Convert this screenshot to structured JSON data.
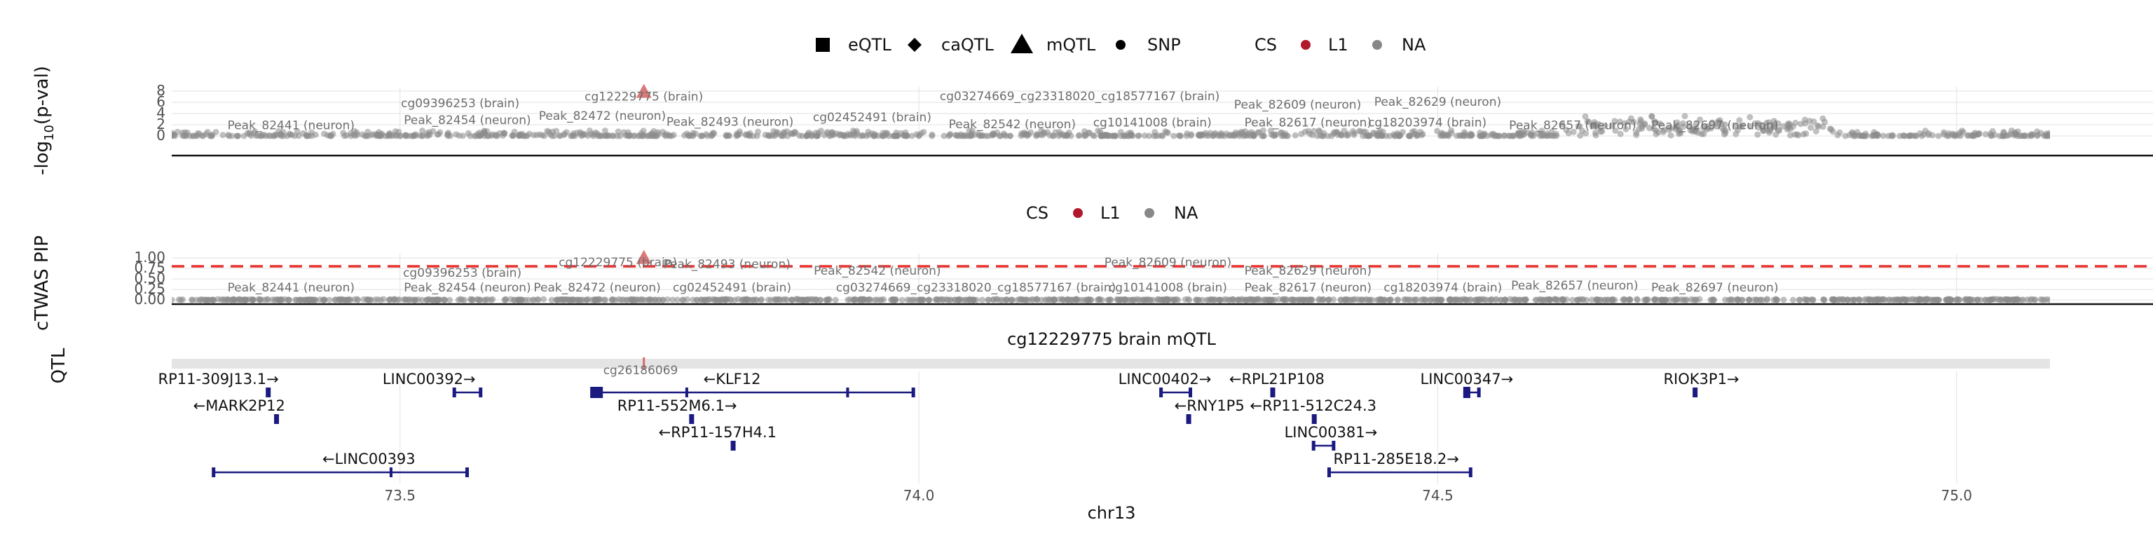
{
  "legend_top": {
    "shapes": [
      {
        "symbol": "square",
        "label": "eQTL"
      },
      {
        "symbol": "diamond",
        "label": "caQTL"
      },
      {
        "symbol": "triangle",
        "label": "mQTL"
      },
      {
        "symbol": "circle",
        "label": "SNP"
      }
    ],
    "cs_title": "CS",
    "cs_entries": [
      {
        "label": "L1",
        "color": "#b2182b"
      },
      {
        "label": "NA",
        "color": "#888888"
      }
    ]
  },
  "legend_mid": {
    "cs_title": "CS",
    "cs_entries": [
      {
        "label": "L1",
        "color": "#b2182b"
      },
      {
        "label": "NA",
        "color": "#888888"
      }
    ]
  },
  "chart_data": {
    "type": "scatter",
    "xlabel": "chr13",
    "xlim": [
      73.28,
      75.09
    ],
    "x_ticks": [
      73.5,
      74.0,
      74.5,
      75.0
    ],
    "x_tick_labels": [
      "73.5",
      "74.0",
      "74.5",
      "75.0"
    ],
    "panels": [
      {
        "id": "pval",
        "ylabel_prefix": "-log",
        "ylabel_sub": "10",
        "ylabel_suffix": "(p-val)",
        "ylim": [
          0,
          8
        ],
        "y_ticks": [
          0,
          2,
          4,
          6,
          8
        ],
        "y_tick_labels": [
          "0",
          "2",
          "4",
          "6",
          "8"
        ],
        "lead": {
          "x": 73.735,
          "y": 7.8,
          "shape": "triangle",
          "cs": "L1"
        },
        "background_level": 0.6,
        "labels": [
          {
            "text": "Peak_82441 (neuron)",
            "x": 73.395,
            "y": 1.2
          },
          {
            "text": "cg09396253 (brain)",
            "x": 73.558,
            "y": 5.1
          },
          {
            "text": "Peak_82454 (neuron)",
            "x": 73.565,
            "y": 2.1
          },
          {
            "text": "Peak_82472 (neuron)",
            "x": 73.695,
            "y": 2.9
          },
          {
            "text": "cg12229775 (brain)",
            "x": 73.735,
            "y": 6.3
          },
          {
            "text": "Peak_82493 (neuron)",
            "x": 73.818,
            "y": 1.8
          },
          {
            "text": "cg02452491 (brain)",
            "x": 73.955,
            "y": 2.6
          },
          {
            "text": "cg03274669_cg23318020_cg18577167 (brain)",
            "x": 74.155,
            "y": 6.4
          },
          {
            "text": "Peak_82542 (neuron)",
            "x": 74.09,
            "y": 1.4
          },
          {
            "text": "cg10141008 (brain)",
            "x": 74.225,
            "y": 1.7
          },
          {
            "text": "Peak_82609 (neuron)",
            "x": 74.365,
            "y": 4.9
          },
          {
            "text": "Peak_82617 (neuron)",
            "x": 74.375,
            "y": 1.7
          },
          {
            "text": "Peak_82629 (neuron)",
            "x": 74.5,
            "y": 5.4
          },
          {
            "text": "cg18203974 (brain)",
            "x": 74.49,
            "y": 1.7
          },
          {
            "text": "Peak_82657 (neuron)",
            "x": 74.63,
            "y": 1.2
          },
          {
            "text": "Peak_82697 (neuron)",
            "x": 74.767,
            "y": 1.2
          }
        ]
      },
      {
        "id": "pip",
        "ylabel": "cTWAS PIP",
        "ylim": [
          0,
          1
        ],
        "y_ticks": [
          0,
          0.25,
          0.5,
          0.75,
          1.0
        ],
        "y_tick_labels": [
          "0.00",
          "0.25",
          "0.50",
          "0.75",
          "1.00"
        ],
        "threshold": 0.8,
        "threshold_color": "#e8302f",
        "lead": {
          "x": 73.735,
          "y": 0.99,
          "shape": "triangle",
          "cs": "L1"
        },
        "background_level": 0.02,
        "labels": [
          {
            "text": "Peak_82441 (neuron)",
            "x": 73.395,
            "y": 0.2
          },
          {
            "text": "cg09396253 (brain)",
            "x": 73.56,
            "y": 0.55
          },
          {
            "text": "Peak_82454 (neuron)",
            "x": 73.565,
            "y": 0.2
          },
          {
            "text": "cg12229775 (brain)",
            "x": 73.71,
            "y": 0.8
          },
          {
            "text": "Peak_82472 (neuron)",
            "x": 73.69,
            "y": 0.2
          },
          {
            "text": "Peak_82493 (neuron)",
            "x": 73.815,
            "y": 0.76
          },
          {
            "text": "cg02452491 (brain)",
            "x": 73.82,
            "y": 0.2
          },
          {
            "text": "Peak_82542 (neuron)",
            "x": 73.96,
            "y": 0.6
          },
          {
            "text": "cg03274669_cg23318020_cg18577167 (brain)",
            "x": 74.055,
            "y": 0.2
          },
          {
            "text": "Peak_82609 (neuron)",
            "x": 74.24,
            "y": 0.8
          },
          {
            "text": "cg10141008 (brain)",
            "x": 74.24,
            "y": 0.2
          },
          {
            "text": "Peak_82629 (neuron)",
            "x": 74.375,
            "y": 0.6
          },
          {
            "text": "Peak_82617 (neuron)",
            "x": 74.375,
            "y": 0.2
          },
          {
            "text": "cg18203974 (brain)",
            "x": 74.505,
            "y": 0.2
          },
          {
            "text": "Peak_82657 (neuron)",
            "x": 74.632,
            "y": 0.25
          },
          {
            "text": "Peak_82697 (neuron)",
            "x": 74.767,
            "y": 0.2
          }
        ]
      },
      {
        "id": "qtl",
        "ylabel": "QTL",
        "strip_title": "cg12229775 brain mQTL",
        "marker_x": 73.735,
        "partial_label": "cg26186069"
      }
    ],
    "genes": [
      {
        "name": "RP11-309J13.1",
        "strand": "+",
        "start": 73.372,
        "end": 73.373,
        "row": 0,
        "label_x": 73.325
      },
      {
        "name": "MARK2P12",
        "strand": "-",
        "start": 73.38,
        "end": 73.381,
        "row": 1,
        "label_x": 73.345
      },
      {
        "name": "LINC00392",
        "strand": "+",
        "start": 73.552,
        "end": 73.578,
        "row": 0,
        "label_x": 73.528
      },
      {
        "name": "LINC00393",
        "strand": "-",
        "start": 73.32,
        "end": 73.565,
        "row": 3,
        "label_x": 73.47
      },
      {
        "name": "KLF12",
        "strand": "-",
        "start": 73.686,
        "end": 73.995,
        "row": 0,
        "label_x": 73.82
      },
      {
        "name": "RP11-552M6.1",
        "strand": "+",
        "start": 73.78,
        "end": 73.782,
        "row": 1,
        "label_x": 73.767
      },
      {
        "name": "RP11-157H4.1",
        "strand": "-",
        "start": 73.82,
        "end": 73.822,
        "row": 2,
        "label_x": 73.806
      },
      {
        "name": "LINC00402",
        "strand": "+",
        "start": 74.233,
        "end": 74.262,
        "row": 0,
        "label_x": 74.237
      },
      {
        "name": "RNY1P5",
        "strand": "-",
        "start": 74.259,
        "end": 74.26,
        "row": 1,
        "label_x": 74.28
      },
      {
        "name": "RPL21P108",
        "strand": "-",
        "start": 74.34,
        "end": 74.341,
        "row": 0,
        "label_x": 74.345
      },
      {
        "name": "RP11-512C24.3",
        "strand": "-",
        "start": 74.38,
        "end": 74.382,
        "row": 1,
        "label_x": 74.38
      },
      {
        "name": "LINC00381",
        "strand": "+",
        "start": 74.38,
        "end": 74.4,
        "row": 2,
        "label_x": 74.397
      },
      {
        "name": "RP11-285E18.2",
        "strand": "+",
        "start": 74.395,
        "end": 74.532,
        "row": 3,
        "label_x": 74.46
      },
      {
        "name": "LINC00347",
        "strand": "+",
        "start": 74.526,
        "end": 74.54,
        "row": 0,
        "label_x": 74.528
      },
      {
        "name": "RIOK3P1",
        "strand": "+",
        "start": 74.747,
        "end": 74.748,
        "row": 0,
        "label_x": 74.754
      }
    ]
  }
}
